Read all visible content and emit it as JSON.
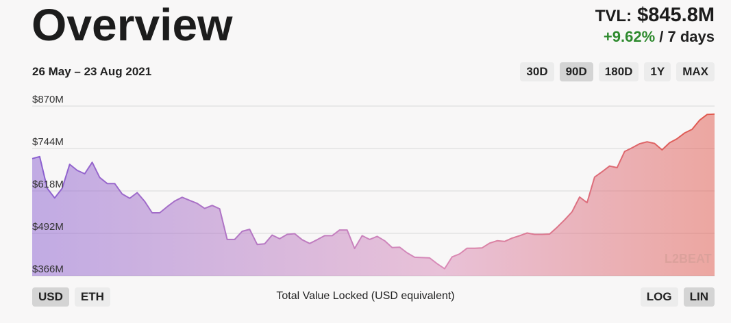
{
  "header": {
    "title": "Overview",
    "tvl_label": "TVL:",
    "tvl_value": "$845.8M",
    "change": "+9.62%",
    "change_period": "/ 7 days",
    "date_range": "26 May – 23 Aug 2021"
  },
  "range_buttons": [
    {
      "label": "30D",
      "active": false
    },
    {
      "label": "90D",
      "active": true
    },
    {
      "label": "180D",
      "active": false
    },
    {
      "label": "1Y",
      "active": false
    },
    {
      "label": "MAX",
      "active": false
    }
  ],
  "currency_buttons": [
    {
      "label": "USD",
      "active": true
    },
    {
      "label": "ETH",
      "active": false
    }
  ],
  "scale_buttons": [
    {
      "label": "LOG",
      "active": false
    },
    {
      "label": "LIN",
      "active": true
    }
  ],
  "watermark": "L2BEAT",
  "colors": {
    "start": "#8a5fd0",
    "mid": "#d98bb8",
    "end": "#e0564a",
    "positive": "#2e8a2e"
  },
  "chart_data": {
    "type": "area",
    "title": "",
    "xlabel": "Total Value Locked (USD equivalent)",
    "ylabel": "",
    "yticks": [
      "$366M",
      "$492M",
      "$618M",
      "$744M",
      "$870M"
    ],
    "ylim": [
      366,
      870
    ],
    "grid": true,
    "series": [
      {
        "values": [
          714,
          720,
          626,
          597,
          626,
          697,
          679,
          669,
          703,
          658,
          640,
          640,
          609,
          596,
          613,
          587,
          553,
          553,
          571,
          588,
          599,
          590,
          581,
          566,
          575,
          565,
          474,
          474,
          498,
          504,
          459,
          461,
          487,
          476,
          489,
          491,
          473,
          462,
          473,
          485,
          485,
          502,
          502,
          447,
          485,
          474,
          483,
          470,
          450,
          451,
          434,
          421,
          420,
          419,
          402,
          387,
          422,
          431,
          448,
          448,
          449,
          463,
          470,
          468,
          478,
          485,
          493,
          489,
          489,
          490,
          510,
          532,
          556,
          600,
          583,
          659,
          675,
          692,
          687,
          735,
          746,
          758,
          764,
          759,
          740,
          761,
          773,
          790,
          801,
          828,
          845,
          846
        ]
      }
    ]
  }
}
